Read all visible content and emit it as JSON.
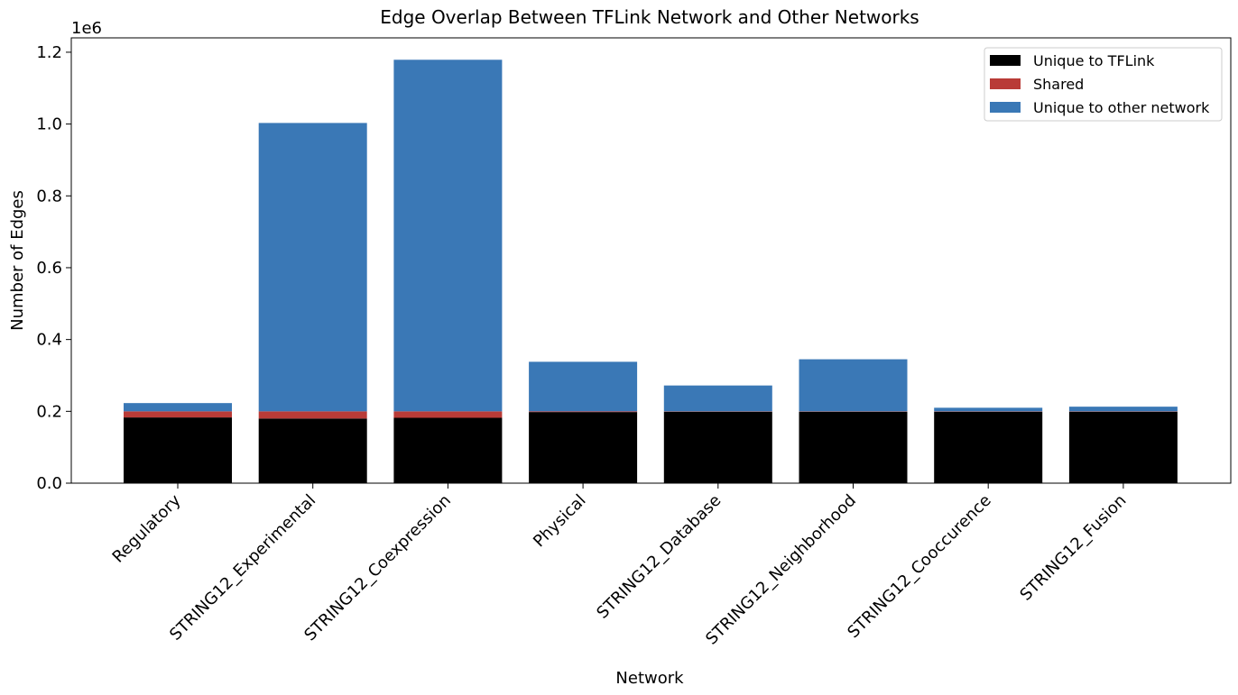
{
  "chart_data": {
    "type": "bar",
    "stacked": true,
    "title": "Edge Overlap Between TFLink Network and Other Networks",
    "xlabel": "Network",
    "ylabel": "Number of Edges",
    "y_multiplier_label": "1e6",
    "y_multiplier": 1000000,
    "ylim": [
      0,
      1240000
    ],
    "yticks": [
      0,
      200000,
      400000,
      600000,
      800000,
      1000000,
      1200000
    ],
    "ytick_labels": [
      "0.0",
      "0.2",
      "0.4",
      "0.6",
      "0.8",
      "1.0",
      "1.2"
    ],
    "grid": false,
    "legend_position": "top-right",
    "categories": [
      "Regulatory",
      "STRING12_Experimental",
      "STRING12_Coexpression",
      "Physical",
      "STRING12_Database",
      "STRING12_Neighborhood",
      "STRING12_Cooccurence",
      "STRING12_Fusion"
    ],
    "series": [
      {
        "name": "Unique to TFLink",
        "color": "#000000",
        "values": [
          183000,
          180000,
          182000,
          198000,
          199000,
          199000,
          199000,
          199000
        ]
      },
      {
        "name": "Shared",
        "color": "#b93b37",
        "values": [
          17000,
          20000,
          18000,
          2000,
          1000,
          1000,
          1000,
          1000
        ]
      },
      {
        "name": "Unique to other network",
        "color": "#3a78b6",
        "values": [
          23000,
          803000,
          979000,
          138000,
          72000,
          145000,
          10000,
          13000
        ]
      }
    ]
  }
}
